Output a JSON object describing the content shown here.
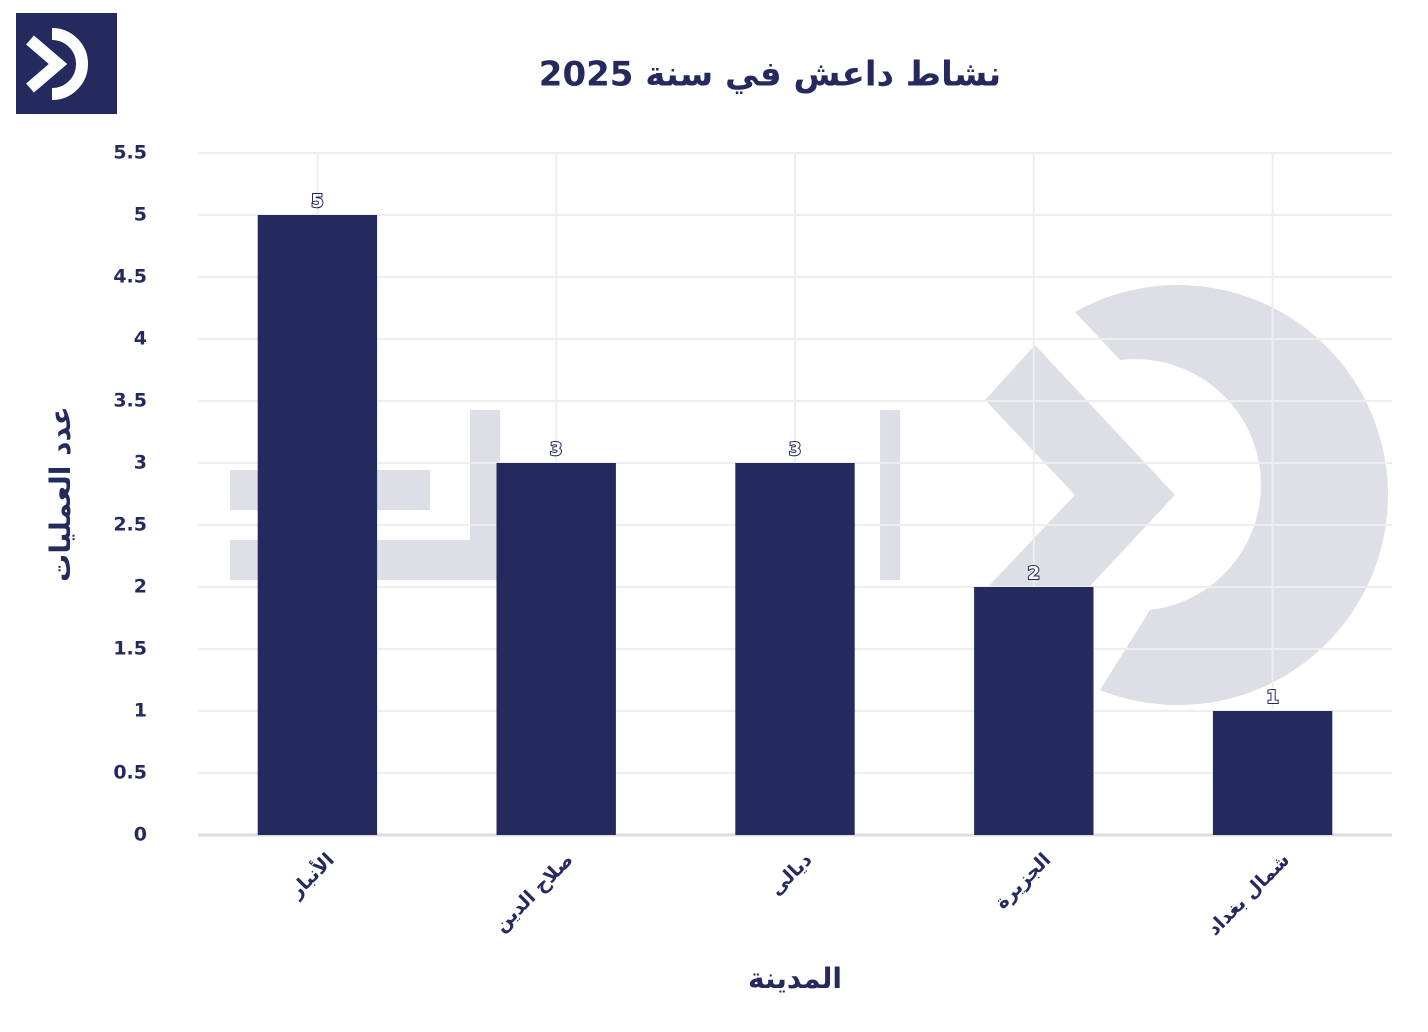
{
  "chart_data": {
    "type": "bar",
    "title": "نشاط داعش في سنة 2025",
    "x_label": "المدينة",
    "y_label": "عدد العمليات",
    "categories": [
      "الأنبار",
      "صلاح الدين",
      "ديالى",
      "الجزيرة",
      "شمال بغداد"
    ],
    "values": [
      5,
      3,
      3,
      2,
      1
    ],
    "color": "#252a5e",
    "ylim": [
      0,
      5.5
    ],
    "yticks": [
      0,
      0.5,
      1,
      1.5,
      2,
      2.5,
      3,
      3.5,
      4,
      4.5,
      5,
      5.5
    ],
    "grid": true
  }
}
